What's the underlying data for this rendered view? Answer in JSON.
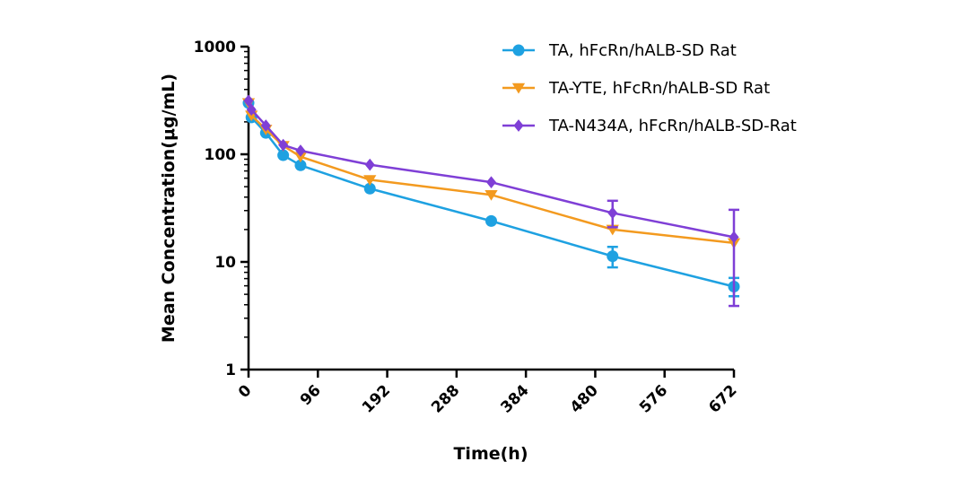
{
  "chart_data": {
    "type": "line",
    "title": "",
    "xlabel": "Time(h)",
    "ylabel": "Mean Concentration(μg/mL)",
    "x_scale": "linear",
    "y_scale": "log",
    "xlim": [
      0,
      672
    ],
    "ylim": [
      1,
      1000
    ],
    "xticks": [
      0,
      96,
      192,
      288,
      384,
      480,
      576,
      672
    ],
    "xtick_labels": [
      "0",
      "96",
      "192",
      "288",
      "384",
      "480",
      "576",
      "672"
    ],
    "yticks": [
      1,
      10,
      100,
      1000
    ],
    "ytick_labels": [
      "1",
      "10",
      "100",
      "1000"
    ],
    "grid": false,
    "legend_position": "top-right",
    "series": [
      {
        "name": "TA, hFcRn/hALB-SD Rat",
        "color": "#1ea1e1",
        "marker": "circle",
        "x": [
          0,
          4,
          24,
          48,
          72,
          168,
          336,
          504,
          672
        ],
        "y": [
          300,
          220,
          158,
          98,
          79,
          48,
          24,
          11.3,
          5.9
        ],
        "errors": [
          {
            "x": 504,
            "low": 8.9,
            "high": 13.8
          },
          {
            "x": 672,
            "low": 4.8,
            "high": 7.1
          }
        ]
      },
      {
        "name": "TA-YTE, hFcRn/hALB-SD Rat",
        "color": "#f39a1f",
        "marker": "triangle-down",
        "x": [
          0,
          4,
          24,
          48,
          72,
          168,
          336,
          504,
          672
        ],
        "y": [
          300,
          230,
          170,
          120,
          95,
          58,
          42,
          20,
          15
        ],
        "errors": []
      },
      {
        "name": "TA-N434A, hFcRn/hALB-SD-Rat",
        "color": "#7f3fd6",
        "marker": "diamond",
        "x": [
          0,
          4,
          24,
          48,
          72,
          168,
          336,
          504,
          672
        ],
        "y": [
          315,
          260,
          185,
          122,
          108,
          80,
          55,
          28.5,
          17
        ],
        "errors": [
          {
            "x": 504,
            "low": 21,
            "high": 37
          },
          {
            "x": 672,
            "low": 3.9,
            "high": 30.5
          }
        ]
      }
    ]
  }
}
